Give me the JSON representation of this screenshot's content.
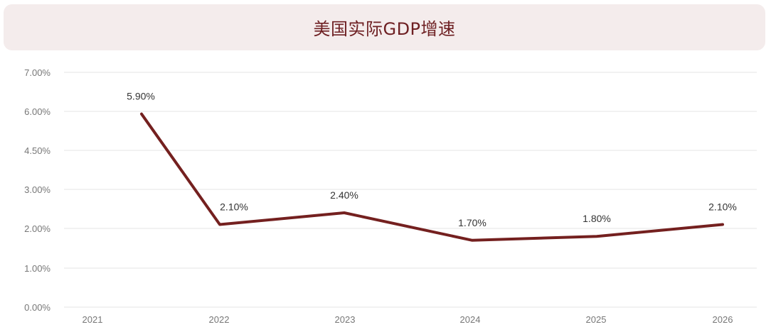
{
  "chart_data": {
    "type": "line",
    "title": "美国实际GDP增速",
    "categories": [
      "2021",
      "2022",
      "2023",
      "2024",
      "2025",
      "2026"
    ],
    "y_tick_labels": [
      "0.00%",
      "1.00%",
      "2.00%",
      "3.00%",
      "4.50%",
      "6.00%",
      "7.00%"
    ],
    "series": [
      {
        "values": [
          5.9,
          2.1,
          2.4,
          1.7,
          1.8,
          2.1
        ],
        "data_labels": [
          "5.90%",
          "2.10%",
          "2.40%",
          "1.70%",
          "1.80%",
          "2.10%"
        ],
        "color": "#74201f"
      }
    ],
    "grid": true,
    "legend": "none",
    "colors": {
      "title_background": "#f4ecec",
      "title_text": "#6e2023",
      "gridline": "#e6e6e6",
      "line": "#74201f"
    }
  }
}
